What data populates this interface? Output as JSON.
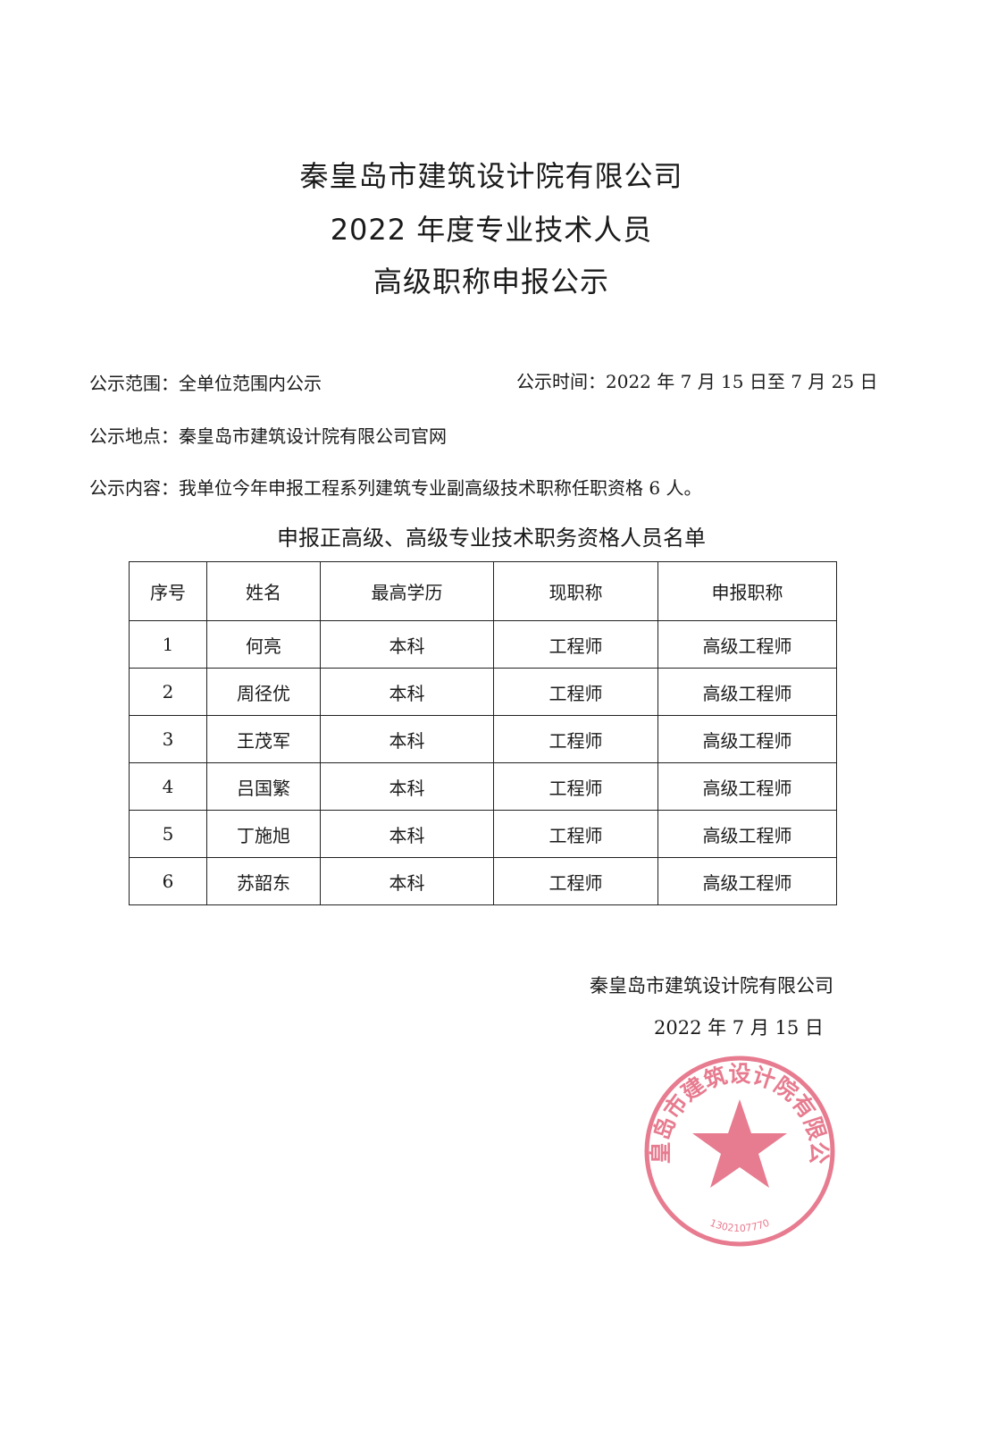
{
  "header": {
    "title_line1": "秦皇岛市建筑设计院有限公司",
    "title_line2": "2022 年度专业技术人员",
    "title_line3": "高级职称申报公示"
  },
  "info": {
    "scope": "公示范围：全单位范围内公示",
    "time": "公示时间：2022 年 7 月 15 日至 7 月 25 日",
    "location": "公示地点：秦皇岛市建筑设计院有限公司官网",
    "content": "公示内容：我单位今年申报工程系列建筑专业副高级技术职称任职资格 6 人。"
  },
  "table": {
    "caption": "申报正高级、高级专业技术职务资格人员名单",
    "headers": [
      "序号",
      "姓名",
      "最高学历",
      "现职称",
      "申报职称"
    ],
    "rows": [
      [
        "1",
        "何亮",
        "本科",
        "工程师",
        "高级工程师"
      ],
      [
        "2",
        "周径优",
        "本科",
        "工程师",
        "高级工程师"
      ],
      [
        "3",
        "王茂军",
        "本科",
        "工程师",
        "高级工程师"
      ],
      [
        "4",
        "吕国繁",
        "本科",
        "工程师",
        "高级工程师"
      ],
      [
        "5",
        "丁施旭",
        "本科",
        "工程师",
        "高级工程师"
      ],
      [
        "6",
        "苏韶东",
        "本科",
        "工程师",
        "高级工程师"
      ]
    ]
  },
  "signature": {
    "org": "秦皇岛市建筑设计院有限公司",
    "date": "2022 年 7 月 15 日"
  },
  "stamp": {
    "text": "秦皇岛市建筑设计院有限公司",
    "code": "1302107770",
    "color": "#e0506a"
  }
}
